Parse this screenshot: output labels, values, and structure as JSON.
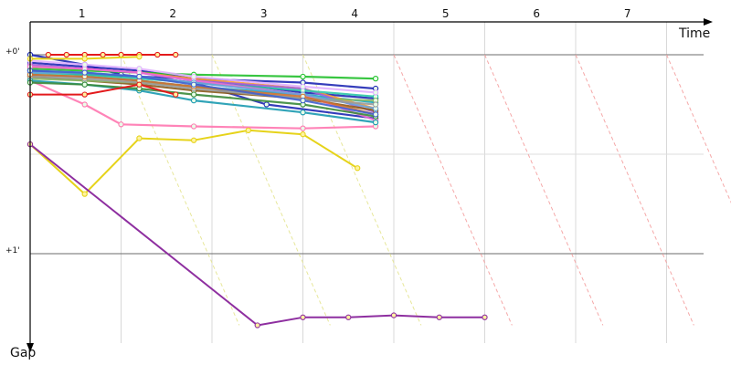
{
  "chart_data": {
    "type": "line",
    "title": "",
    "xlabel": "Time",
    "ylabel": "Gap",
    "laps": [
      "1",
      "2",
      "3",
      "4",
      "5",
      "6",
      "7"
    ],
    "gap_ticks": [
      {
        "label": "+0'",
        "value": 0
      },
      {
        "label": "+1'",
        "value": 1
      }
    ],
    "ylim": [
      0,
      1.45
    ],
    "grid": true,
    "legend": "none",
    "series": [
      {
        "color": "#e31a1c",
        "points": [
          [
            0.2,
            0
          ],
          [
            0.4,
            0
          ],
          [
            0.6,
            0
          ],
          [
            0.8,
            0
          ],
          [
            1.0,
            0
          ],
          [
            1.2,
            0
          ],
          [
            1.4,
            0
          ],
          [
            1.6,
            0
          ]
        ],
        "emph": true
      },
      {
        "color": "#e31a1c",
        "points": [
          [
            0.0,
            0.2
          ],
          [
            0.6,
            0.2
          ],
          [
            1.2,
            0.15
          ],
          [
            1.6,
            0.2
          ]
        ],
        "emph": true
      },
      {
        "color": "#e6d31a",
        "points": [
          [
            0.0,
            0.02
          ],
          [
            0.6,
            0.02
          ],
          [
            1.2,
            0.01
          ]
        ],
        "emph": true
      },
      {
        "color": "#e6d31a",
        "points": [
          [
            0.0,
            0.45
          ],
          [
            0.6,
            0.7
          ],
          [
            1.2,
            0.42
          ],
          [
            1.8,
            0.43
          ],
          [
            2.4,
            0.38
          ],
          [
            3.0,
            0.4
          ],
          [
            3.6,
            0.57
          ]
        ],
        "emph": true
      },
      {
        "color": "#8e2fa0",
        "points": [
          [
            0.0,
            0.45
          ],
          [
            2.5,
            1.36
          ],
          [
            3.0,
            1.32
          ],
          [
            3.5,
            1.32
          ],
          [
            4.0,
            1.31
          ],
          [
            4.5,
            1.32
          ],
          [
            5.0,
            1.32
          ]
        ],
        "emph": true
      },
      {
        "color": "#ff77b0",
        "points": [
          [
            0.0,
            0.13
          ],
          [
            0.6,
            0.25
          ],
          [
            1.0,
            0.35
          ],
          [
            1.8,
            0.36
          ],
          [
            3.0,
            0.37
          ],
          [
            3.8,
            0.36
          ]
        ]
      },
      {
        "color": "#1f28b4",
        "points": [
          [
            0.0,
            0.0
          ],
          [
            0.6,
            0.05
          ],
          [
            1.0,
            0.1
          ],
          [
            1.8,
            0.14
          ],
          [
            2.6,
            0.25
          ],
          [
            3.8,
            0.32
          ]
        ]
      },
      {
        "color": "#1f28b4",
        "points": [
          [
            0.0,
            0.04
          ],
          [
            0.6,
            0.06
          ],
          [
            1.2,
            0.08
          ],
          [
            1.8,
            0.12
          ],
          [
            3.0,
            0.19
          ],
          [
            3.8,
            0.22
          ]
        ]
      },
      {
        "color": "#1f28b4",
        "points": [
          [
            0.0,
            0.08
          ],
          [
            0.6,
            0.1
          ],
          [
            1.2,
            0.11
          ],
          [
            1.8,
            0.12
          ],
          [
            3.0,
            0.14
          ],
          [
            3.8,
            0.17
          ]
        ]
      },
      {
        "color": "#22c02c",
        "points": [
          [
            0.0,
            0.07
          ],
          [
            0.6,
            0.08
          ],
          [
            1.2,
            0.09
          ],
          [
            1.8,
            0.1
          ],
          [
            3.0,
            0.11
          ],
          [
            3.8,
            0.12
          ]
        ]
      },
      {
        "color": "#12a6c0",
        "points": [
          [
            0.0,
            0.1
          ],
          [
            0.6,
            0.11
          ],
          [
            1.2,
            0.13
          ],
          [
            1.8,
            0.16
          ],
          [
            3.0,
            0.2
          ],
          [
            3.8,
            0.24
          ]
        ]
      },
      {
        "color": "#ff9f2a",
        "points": [
          [
            0.0,
            0.06
          ],
          [
            0.6,
            0.07
          ],
          [
            1.2,
            0.09
          ],
          [
            1.8,
            0.12
          ],
          [
            3.0,
            0.17
          ],
          [
            3.8,
            0.27
          ]
        ]
      },
      {
        "color": "#a064dc",
        "points": [
          [
            0.0,
            0.05
          ],
          [
            0.6,
            0.07
          ],
          [
            1.2,
            0.09
          ],
          [
            1.8,
            0.13
          ],
          [
            3.0,
            0.17
          ],
          [
            3.8,
            0.29
          ]
        ]
      },
      {
        "color": "#2ec8a8",
        "points": [
          [
            0.0,
            0.09
          ],
          [
            0.6,
            0.1
          ],
          [
            1.2,
            0.12
          ],
          [
            1.8,
            0.14
          ],
          [
            3.0,
            0.18
          ],
          [
            3.8,
            0.21
          ]
        ]
      },
      {
        "color": "#8a5a1a",
        "points": [
          [
            0.0,
            0.11
          ],
          [
            0.6,
            0.13
          ],
          [
            1.2,
            0.15
          ],
          [
            1.8,
            0.18
          ],
          [
            3.0,
            0.22
          ],
          [
            3.8,
            0.28
          ]
        ]
      },
      {
        "color": "#f06bd0",
        "points": [
          [
            0.0,
            0.06
          ],
          [
            0.6,
            0.07
          ],
          [
            1.2,
            0.09
          ],
          [
            1.8,
            0.13
          ],
          [
            3.0,
            0.2
          ],
          [
            3.8,
            0.33
          ]
        ]
      },
      {
        "color": "#8ab868",
        "points": [
          [
            0.0,
            0.12
          ],
          [
            0.6,
            0.13
          ],
          [
            1.2,
            0.14
          ],
          [
            1.8,
            0.16
          ],
          [
            3.0,
            0.22
          ],
          [
            3.8,
            0.23
          ]
        ]
      },
      {
        "color": "#6aa0d8",
        "points": [
          [
            0.0,
            0.09
          ],
          [
            0.6,
            0.09
          ],
          [
            1.2,
            0.11
          ],
          [
            1.8,
            0.14
          ],
          [
            3.0,
            0.2
          ],
          [
            3.8,
            0.27
          ]
        ]
      },
      {
        "color": "#e0b0ff",
        "points": [
          [
            0.0,
            0.03
          ],
          [
            0.6,
            0.05
          ],
          [
            1.2,
            0.07
          ],
          [
            1.8,
            0.11
          ],
          [
            3.0,
            0.16
          ],
          [
            3.8,
            0.19
          ]
        ]
      },
      {
        "color": "#9a9a9a",
        "points": [
          [
            0.0,
            0.11
          ],
          [
            0.6,
            0.12
          ],
          [
            1.2,
            0.14
          ],
          [
            1.8,
            0.17
          ],
          [
            3.0,
            0.22
          ],
          [
            3.8,
            0.25
          ]
        ]
      },
      {
        "color": "#1b9ab0",
        "points": [
          [
            0.0,
            0.13
          ],
          [
            0.6,
            0.15
          ],
          [
            1.2,
            0.18
          ],
          [
            1.8,
            0.23
          ],
          [
            3.0,
            0.29
          ],
          [
            3.8,
            0.34
          ]
        ]
      },
      {
        "color": "#3a8a3a",
        "points": [
          [
            0.0,
            0.14
          ],
          [
            0.6,
            0.15
          ],
          [
            1.2,
            0.17
          ],
          [
            1.8,
            0.2
          ],
          [
            3.0,
            0.25
          ],
          [
            3.8,
            0.31
          ]
        ]
      },
      {
        "color": "#d07030",
        "points": [
          [
            0.0,
            0.1
          ],
          [
            0.6,
            0.11
          ],
          [
            1.2,
            0.13
          ],
          [
            1.8,
            0.16
          ],
          [
            3.0,
            0.21
          ],
          [
            3.8,
            0.3
          ]
        ]
      },
      {
        "color": "#4060d0",
        "points": [
          [
            0.0,
            0.08
          ],
          [
            0.6,
            0.09
          ],
          [
            1.2,
            0.11
          ],
          [
            1.8,
            0.15
          ],
          [
            3.0,
            0.23
          ],
          [
            3.8,
            0.3
          ]
        ]
      }
    ]
  }
}
